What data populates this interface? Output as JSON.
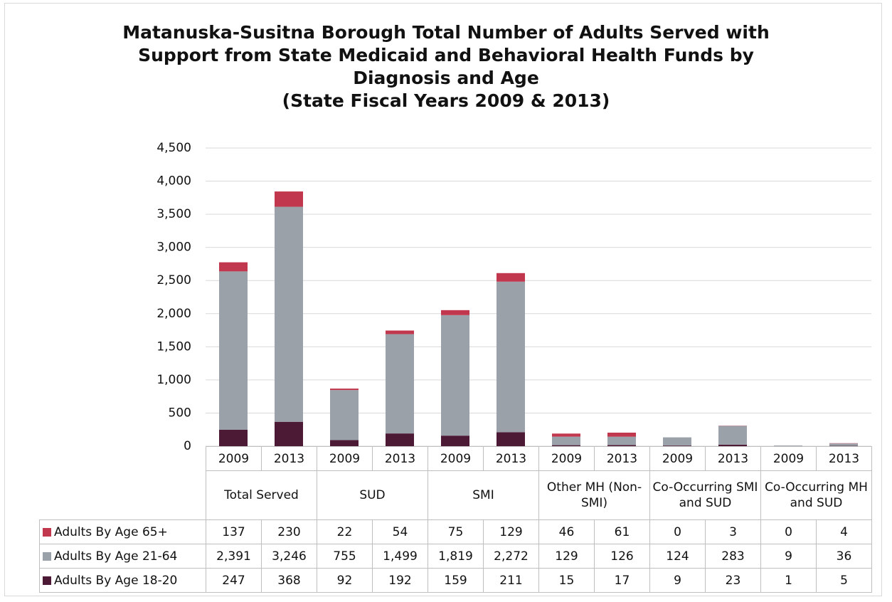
{
  "chart_data": {
    "type": "stacked_bar",
    "title": "Matanuska-Susitna Borough Total Number of Adults Served with Support from State Medicaid and Behavioral Health Funds by Diagnosis and Age",
    "subtitle": "(State Fiscal Years 2009 & 2013)",
    "categories": [
      "2009",
      "2013",
      "2009",
      "2013",
      "2009",
      "2013",
      "2009",
      "2013",
      "2009",
      "2013",
      "2009",
      "2013"
    ],
    "groups": [
      "Total Served",
      "SUD",
      "SMI",
      "Other MH (Non-SMI)",
      "Co-Occurring SMI and SUD",
      "Co-Occurring MH and SUD"
    ],
    "series": [
      {
        "name": "Adults By Age 18-20",
        "color": "#4d1a36",
        "values": [
          247,
          368,
          92,
          192,
          159,
          211,
          15,
          17,
          9,
          23,
          1,
          5
        ]
      },
      {
        "name": "Adults By Age 21-64",
        "color": "#9ba1a9",
        "values": [
          2391,
          3246,
          755,
          1499,
          1819,
          2272,
          129,
          126,
          124,
          283,
          9,
          36
        ],
        "value_labels": [
          "2,391",
          "3,246",
          "755",
          "1,499",
          "1,819",
          "2,272",
          "129",
          "126",
          "124",
          "283",
          "9",
          "36"
        ]
      },
      {
        "name": "Adults By Age 65+",
        "color": "#c1374d",
        "values": [
          137,
          230,
          22,
          54,
          75,
          129,
          46,
          61,
          0,
          3,
          0,
          4
        ]
      }
    ],
    "ylim": [
      0,
      4500
    ],
    "yticks": [
      0,
      500,
      {
        "value": 1000,
        "label": "1,000"
      },
      {
        "value": 1500,
        "label": "1,500"
      },
      {
        "value": 2000,
        "label": "2,000"
      },
      {
        "value": 2500,
        "label": "2,500"
      },
      {
        "value": 3000,
        "label": "3,000"
      },
      {
        "value": 3500,
        "label": "3,500"
      },
      {
        "value": 4000,
        "label": "4,000"
      },
      {
        "value": 4500,
        "label": "4,500"
      }
    ],
    "grid": true
  }
}
